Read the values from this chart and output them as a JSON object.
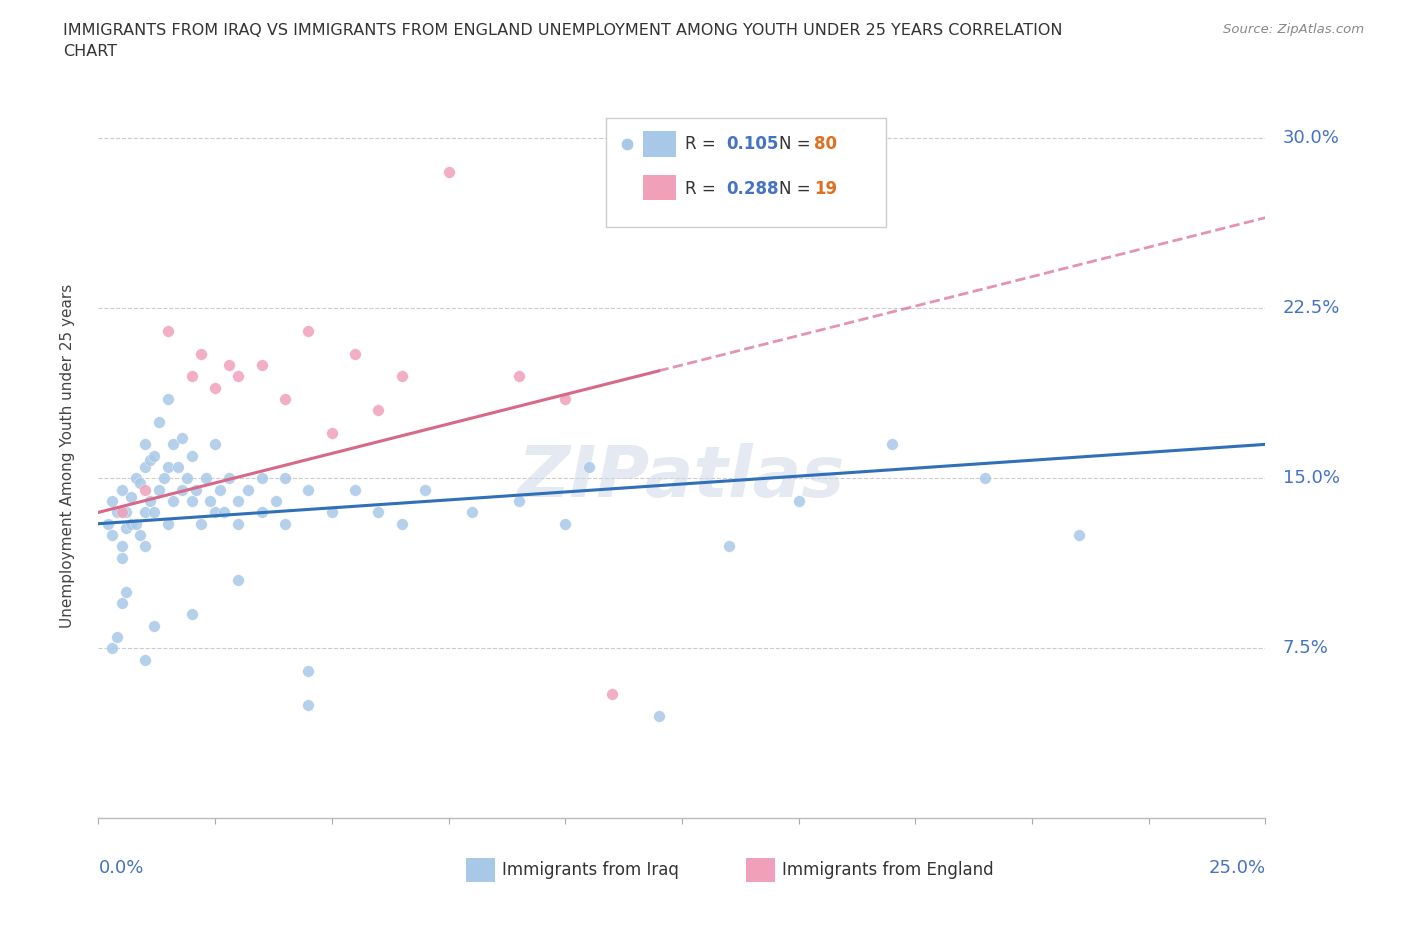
{
  "title_line1": "IMMIGRANTS FROM IRAQ VS IMMIGRANTS FROM ENGLAND UNEMPLOYMENT AMONG YOUTH UNDER 25 YEARS CORRELATION",
  "title_line2": "CHART",
  "source": "Source: ZipAtlas.com",
  "ylabel": "Unemployment Among Youth under 25 years",
  "xlim": [
    0.0,
    25.0
  ],
  "ylim": [
    0.0,
    32.0
  ],
  "iraq_color": "#a8c8e8",
  "england_color": "#f0a0b8",
  "iraq_line_color": "#3070b8",
  "england_line_color": "#d86888",
  "watermark": "ZIPatlas",
  "iraq_x": [
    0.2,
    0.3,
    0.3,
    0.4,
    0.5,
    0.5,
    0.5,
    0.6,
    0.6,
    0.7,
    0.7,
    0.8,
    0.8,
    0.9,
    0.9,
    1.0,
    1.0,
    1.0,
    1.0,
    1.1,
    1.1,
    1.2,
    1.2,
    1.3,
    1.3,
    1.4,
    1.5,
    1.5,
    1.5,
    1.6,
    1.6,
    1.7,
    1.8,
    1.8,
    1.9,
    2.0,
    2.0,
    2.1,
    2.2,
    2.3,
    2.4,
    2.5,
    2.5,
    2.6,
    2.7,
    2.8,
    3.0,
    3.0,
    3.2,
    3.5,
    3.5,
    3.8,
    4.0,
    4.0,
    4.5,
    4.5,
    5.0,
    5.5,
    6.0,
    6.5,
    7.0,
    8.0,
    9.0,
    10.0,
    10.5,
    12.0,
    13.5,
    15.0,
    17.0,
    19.0,
    21.0,
    0.3,
    0.4,
    0.5,
    0.6,
    1.0,
    1.2,
    2.0,
    3.0,
    4.5
  ],
  "iraq_y": [
    13.0,
    12.5,
    14.0,
    13.5,
    11.5,
    12.0,
    14.5,
    12.8,
    13.5,
    13.0,
    14.2,
    13.0,
    15.0,
    12.5,
    14.8,
    12.0,
    13.5,
    15.5,
    16.5,
    14.0,
    15.8,
    13.5,
    16.0,
    14.5,
    17.5,
    15.0,
    13.0,
    15.5,
    18.5,
    14.0,
    16.5,
    15.5,
    14.5,
    16.8,
    15.0,
    14.0,
    16.0,
    14.5,
    13.0,
    15.0,
    14.0,
    13.5,
    16.5,
    14.5,
    13.5,
    15.0,
    14.0,
    13.0,
    14.5,
    13.5,
    15.0,
    14.0,
    13.0,
    15.0,
    14.5,
    5.0,
    13.5,
    14.5,
    13.5,
    13.0,
    14.5,
    13.5,
    14.0,
    13.0,
    15.5,
    4.5,
    12.0,
    14.0,
    16.5,
    15.0,
    12.5,
    7.5,
    8.0,
    9.5,
    10.0,
    7.0,
    8.5,
    9.0,
    10.5,
    6.5
  ],
  "england_x": [
    0.5,
    1.0,
    1.5,
    2.0,
    2.2,
    2.5,
    2.8,
    3.0,
    3.5,
    4.0,
    4.5,
    5.0,
    5.5,
    6.0,
    7.5,
    9.0,
    10.0,
    11.0,
    6.5
  ],
  "england_y": [
    13.5,
    14.5,
    21.5,
    19.5,
    20.5,
    19.0,
    20.0,
    19.5,
    20.0,
    18.5,
    21.5,
    17.0,
    20.5,
    18.0,
    28.5,
    19.5,
    18.5,
    5.5,
    19.5
  ],
  "iraq_trend_x0": 0.0,
  "iraq_trend_y0": 13.0,
  "iraq_trend_x1": 25.0,
  "iraq_trend_y1": 16.5,
  "england_trend_x0": 0.0,
  "england_trend_y0": 13.5,
  "england_trend_x1": 25.0,
  "england_trend_y1": 26.5
}
